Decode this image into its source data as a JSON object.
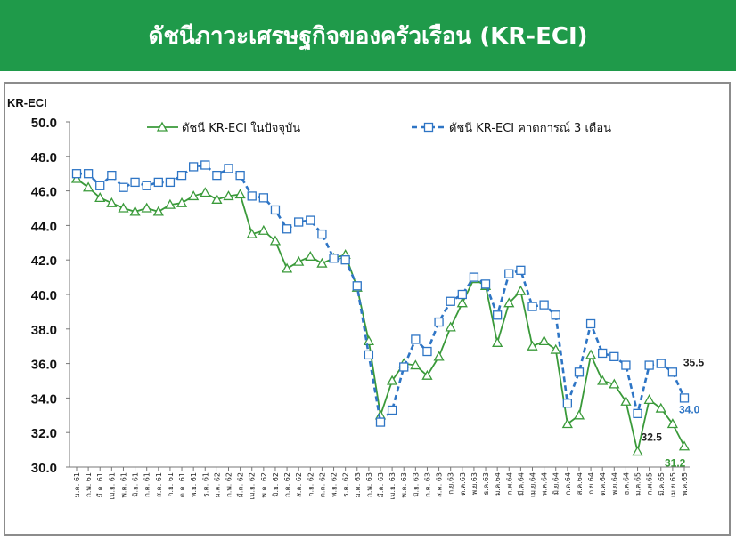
{
  "header": {
    "title": "ดัชนีภาวะเศรษฐกิจของครัวเรือน (KR-ECI)"
  },
  "chart_data": {
    "type": "line",
    "ylabel": "KR-ECI",
    "ylim": [
      30,
      50
    ],
    "yticks": [
      "30.0",
      "32.0",
      "34.0",
      "36.0",
      "38.0",
      "40.0",
      "42.0",
      "44.0",
      "46.0",
      "48.0",
      "50.0"
    ],
    "categories": [
      "ม.ค. 61",
      "ก.พ. 61",
      "มี.ค. 61",
      "เม.ย. 61",
      "พ.ค. 61",
      "มิ.ย. 61",
      "ก.ค. 61",
      "ส.ค. 61",
      "ก.ย. 61",
      "ต.ค. 61",
      "พ.ย. 61",
      "ธ.ค. 61",
      "ม.ค. 62",
      "ก.พ. 62",
      "มี.ค. 62",
      "เม.ย. 62",
      "พ.ค. 62",
      "มิ.ย. 62",
      "ก.ค. 62",
      "ส.ค. 62",
      "ก.ย. 62",
      "ต.ค. 62",
      "พ.ย. 62",
      "ธ.ค. 62",
      "ม.ค. 63",
      "ก.พ. 63",
      "มี.ค. 63",
      "เม.ย. 63",
      "พ.ค. 63",
      "มิ.ย. 63",
      "ก.ค. 63",
      "ส.ค. 63",
      "ก.ย.63",
      "ต.ค.63",
      "พ.ย.63",
      "ธ.ค.63",
      "ม.ค.64",
      "ก.พ.64",
      "มี.ค.64",
      "เม.ย.64",
      "พ.ค.64",
      "มิ.ย.64",
      "ก.ค.64",
      "ส.ค.64",
      "ก.ย.64",
      "ต.ค.64",
      "พ.ย.64",
      "ธ.ค.64",
      "ม.ค.65",
      "ก.พ.65",
      "มี.ค.65",
      "เม.ย.65",
      "พ.ค.65"
    ],
    "legend": [
      "ดัชนี KR-ECI ในปัจจุบัน",
      "ดัชนี KR-ECI คาดการณ์ 3 เดือน"
    ],
    "legend_position": "top",
    "series": [
      {
        "name": "ดัชนี KR-ECI ในปัจจุบัน",
        "color": "#3a9a3a",
        "style": "solid",
        "marker": "triangle",
        "values": [
          46.7,
          46.2,
          45.6,
          45.3,
          45.0,
          44.8,
          45.0,
          44.8,
          45.2,
          45.3,
          45.7,
          45.9,
          45.5,
          45.7,
          45.8,
          43.5,
          43.7,
          43.1,
          41.5,
          41.9,
          42.2,
          41.8,
          42.1,
          42.3,
          40.4,
          37.3,
          33.0,
          35.0,
          36.0,
          35.9,
          35.3,
          36.4,
          38.1,
          39.5,
          40.9,
          40.5,
          37.2,
          39.5,
          40.2,
          37.0,
          37.3,
          36.8,
          32.5,
          33.0,
          36.5,
          35.0,
          34.8,
          33.8,
          30.9,
          33.9,
          33.4,
          32.5,
          31.2
        ]
      },
      {
        "name": "ดัชนี KR-ECI คาดการณ์ 3 เดือน",
        "color": "#2e75c5",
        "style": "dashed",
        "marker": "square",
        "values": [
          47.0,
          47.0,
          46.3,
          46.9,
          46.2,
          46.5,
          46.3,
          46.5,
          46.5,
          46.9,
          47.4,
          47.5,
          46.9,
          47.3,
          46.9,
          45.7,
          45.6,
          44.9,
          43.8,
          44.2,
          44.3,
          43.5,
          42.1,
          42.0,
          40.5,
          36.5,
          32.6,
          33.3,
          35.8,
          37.4,
          36.7,
          38.4,
          39.6,
          40.0,
          41.0,
          40.6,
          38.8,
          41.2,
          41.4,
          39.3,
          39.4,
          38.8,
          33.7,
          35.5,
          38.3,
          36.6,
          36.4,
          35.9,
          33.1,
          35.9,
          36.0,
          35.5,
          34.0
        ]
      }
    ],
    "annotations": [
      {
        "text": "35.5",
        "series": 1,
        "index": 51,
        "color": "#222222"
      },
      {
        "text": "34.0",
        "series": 1,
        "index": 52,
        "color": "#2e75c5"
      },
      {
        "text": "32.5",
        "series": 0,
        "index": 51,
        "color": "#222222"
      },
      {
        "text": "31.2",
        "series": 0,
        "index": 52,
        "color": "#3a9a3a"
      }
    ],
    "grid": false
  }
}
